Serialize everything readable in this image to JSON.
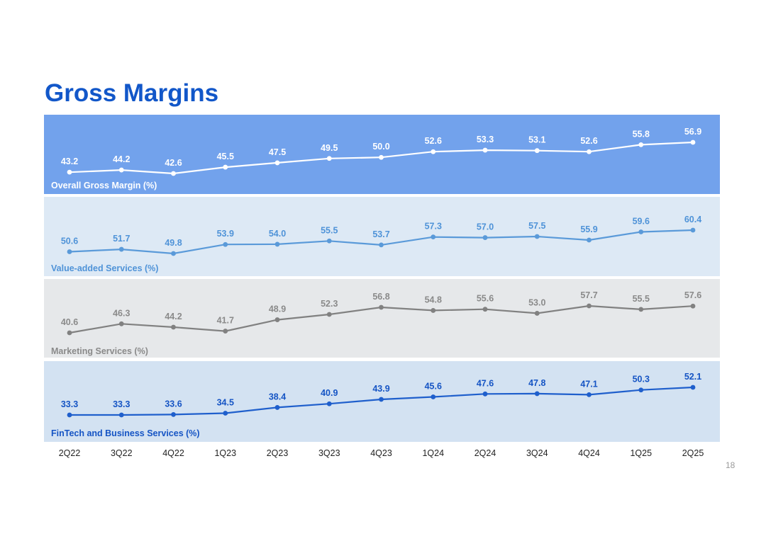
{
  "page": {
    "title": "Gross Margins",
    "page_number": "18"
  },
  "chart_data": {
    "type": "line",
    "title": "Gross Margins",
    "x": [
      "2Q22",
      "3Q22",
      "4Q22",
      "1Q23",
      "2Q23",
      "3Q23",
      "4Q23",
      "1Q24",
      "2Q24",
      "3Q24",
      "4Q24",
      "1Q25",
      "2Q25"
    ],
    "xlabel": "",
    "ylabel": "",
    "grid": false,
    "legend": "inside each panel, bottom-left",
    "series": [
      {
        "name": "Overall Gross Margin (%)",
        "values": [
          43.2,
          44.2,
          42.6,
          45.5,
          47.5,
          49.5,
          50.0,
          52.6,
          53.3,
          53.1,
          52.6,
          55.8,
          56.9
        ],
        "labels": [
          "43.2",
          "44.2",
          "42.6",
          "45.5",
          "47.5",
          "49.5",
          "50.0",
          "52.6",
          "53.3",
          "53.1",
          "52.6",
          "55.8",
          "56.9"
        ],
        "panel_color": "#72a2ec",
        "line_color": "#ffffff",
        "label_color": "#ffffff"
      },
      {
        "name": "Value-added Services (%)",
        "values": [
          50.6,
          51.7,
          49.8,
          53.9,
          54.0,
          55.5,
          53.7,
          57.3,
          57.0,
          57.5,
          55.9,
          59.6,
          60.4
        ],
        "labels": [
          "50.6",
          "51.7",
          "49.8",
          "53.9",
          "54.0",
          "55.5",
          "53.7",
          "57.3",
          "57.0",
          "57.5",
          "55.9",
          "59.6",
          "60.4"
        ],
        "panel_color": "#dde9f5",
        "line_color": "#5a9ad9",
        "label_color": "#4f93d8"
      },
      {
        "name": "Marketing Services (%)",
        "values": [
          40.6,
          46.3,
          44.2,
          41.7,
          48.9,
          52.3,
          56.8,
          54.8,
          55.6,
          53.0,
          57.7,
          55.5,
          57.6
        ],
        "labels": [
          "40.6",
          "46.3",
          "44.2",
          "41.7",
          "48.9",
          "52.3",
          "56.8",
          "54.8",
          "55.6",
          "53.0",
          "57.7",
          "55.5",
          "57.6"
        ],
        "panel_color": "#e6e8ea",
        "line_color": "#818181",
        "label_color": "#8a8a8a"
      },
      {
        "name": "FinTech and Business Services (%)",
        "values": [
          33.3,
          33.3,
          33.6,
          34.5,
          38.4,
          40.9,
          43.9,
          45.6,
          47.6,
          47.8,
          47.1,
          50.3,
          52.1
        ],
        "labels": [
          "33.3",
          "33.3",
          "33.6",
          "34.5",
          "38.4",
          "40.9",
          "43.9",
          "45.6",
          "47.6",
          "47.8",
          "47.1",
          "50.3",
          "52.1"
        ],
        "panel_color": "#d3e2f2",
        "line_color": "#1f5fcc",
        "label_color": "#1554c4"
      }
    ]
  }
}
